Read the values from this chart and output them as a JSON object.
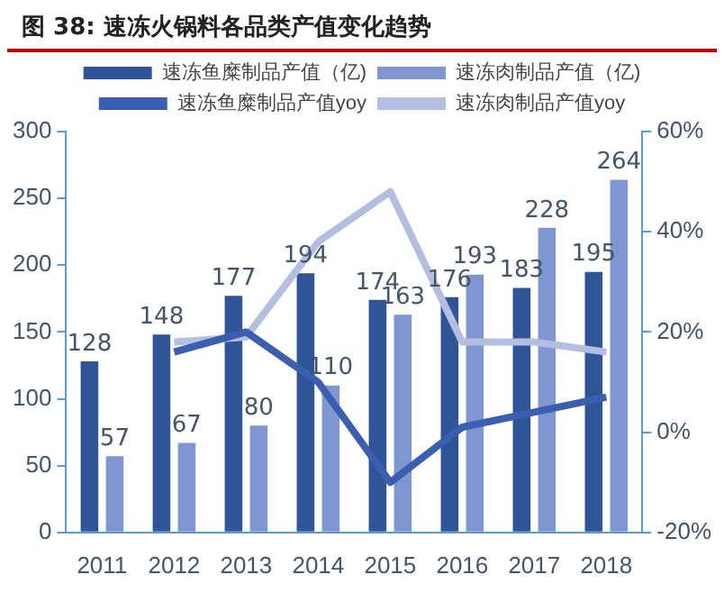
{
  "chart_data": {
    "type": "bar",
    "title": "图 38: 速冻火锅料各品类产值变化趋势",
    "categories": [
      "2011",
      "2012",
      "2013",
      "2014",
      "2015",
      "2016",
      "2017",
      "2018"
    ],
    "series": [
      {
        "name": "速冻鱼糜制品产值（亿)",
        "color": "#2f5597",
        "values": [
          128,
          148,
          177,
          194,
          174,
          176,
          183,
          195
        ],
        "value_labels": [
          "128",
          "148",
          "177",
          "194",
          "174",
          "176",
          "183",
          "195"
        ]
      },
      {
        "name": "速冻肉制品产值（亿)",
        "color": "#7f96d2",
        "values": [
          57,
          67,
          80,
          110,
          163,
          193,
          228,
          264
        ],
        "value_labels": [
          "57",
          "67",
          "80",
          "110",
          "163",
          "193",
          "228",
          "264"
        ]
      },
      {
        "name": "速冻鱼糜制品产值yoy",
        "type": "line",
        "axis": "y2",
        "color": "#3a5fb0",
        "values": [
          null,
          16,
          20,
          10,
          -10,
          1,
          4,
          7
        ]
      },
      {
        "name": "速冻肉制品产值yoy",
        "type": "line",
        "axis": "y2",
        "color": "#b4bee0",
        "values": [
          null,
          18,
          19,
          38,
          48,
          18,
          18,
          16
        ]
      }
    ],
    "ylim": [
      0,
      300
    ],
    "yticks": [
      0,
      50,
      100,
      150,
      200,
      250,
      300
    ],
    "y2lim": [
      -20,
      60
    ],
    "y2ticks": [
      {
        "value": -20,
        "label": "-20%"
      },
      {
        "value": 0,
        "label": "0%"
      },
      {
        "value": 20,
        "label": "20%"
      },
      {
        "value": 40,
        "label": "40%"
      },
      {
        "value": 60,
        "label": "60%"
      }
    ],
    "legend": "top",
    "grid": false,
    "marker": "none",
    "line_style": "solid"
  }
}
